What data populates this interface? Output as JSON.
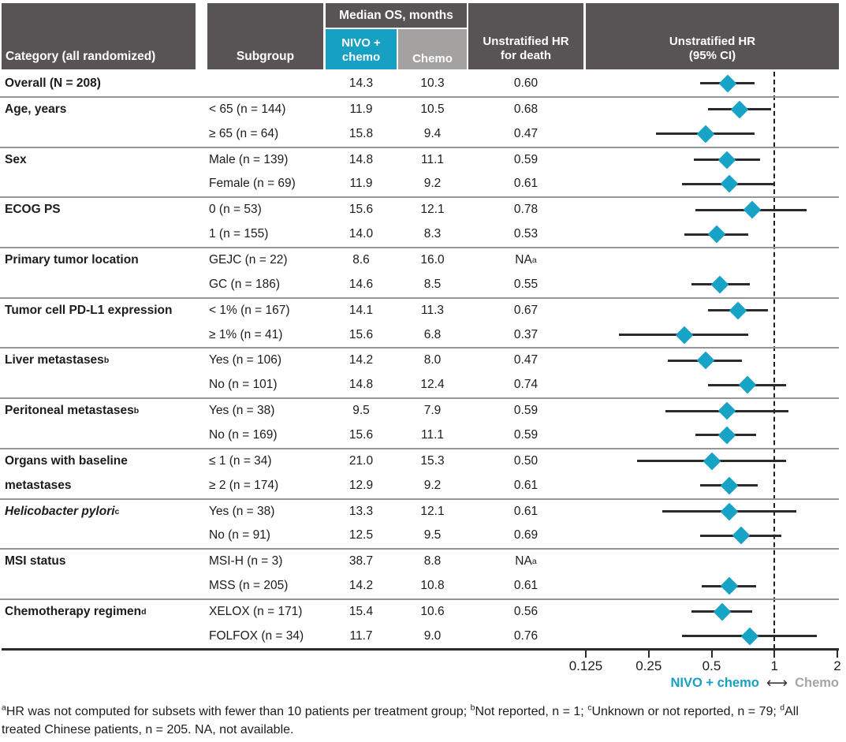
{
  "header": {
    "category": "Category (all randomized)",
    "subgroup": "Subgroup",
    "median_os": "Median OS, months",
    "arm1_line1": "NIVO +",
    "arm1_line2": "chemo",
    "arm2": "Chemo",
    "hr_col_line1": "Unstratified HR",
    "hr_col_line2": "for death",
    "plot_col_line1": "Unstratified HR",
    "plot_col_line2": "(95% CI)"
  },
  "colors": {
    "header_dark": "#585354",
    "teal_accent": "#16a0c3",
    "chemo_gray": "#a4a1a1",
    "ci_line": "#2b2b2b",
    "separator": "#969696"
  },
  "chart_data": {
    "type": "scatter",
    "title": "Unstratified HR (95% CI)",
    "x_scale": "log2",
    "x_range": [
      0.125,
      2
    ],
    "x_ticks": [
      0.125,
      0.25,
      0.5,
      1,
      2
    ],
    "x_tick_labels": [
      "0.125",
      "0.25",
      "0.5",
      "1",
      "2"
    ],
    "reference_line": 1,
    "legend": {
      "left_label": "NIVO + chemo",
      "arrow": "⟷",
      "right_label": "Chemo"
    },
    "rows": [
      {
        "category": "Overall (N = 208)",
        "subgroup": "",
        "nivo": "14.3",
        "chemo": "10.3",
        "hr": "0.60",
        "est": 0.6,
        "lo": 0.44,
        "hi": 0.8,
        "sep": false
      },
      {
        "category": "Age, years",
        "subgroup": "< 65 (n = 144)",
        "nivo": "11.9",
        "chemo": "10.5",
        "hr": "0.68",
        "est": 0.68,
        "lo": 0.48,
        "hi": 0.96,
        "sep": true
      },
      {
        "category": "",
        "subgroup": "≥ 65 (n = 64)",
        "nivo": "15.8",
        "chemo": "9.4",
        "hr": "0.47",
        "est": 0.47,
        "lo": 0.27,
        "hi": 0.8,
        "sep": false
      },
      {
        "category": "Sex",
        "subgroup": "Male (n = 139)",
        "nivo": "14.8",
        "chemo": "11.1",
        "hr": "0.59",
        "est": 0.59,
        "lo": 0.41,
        "hi": 0.85,
        "sep": true
      },
      {
        "category": "",
        "subgroup": "Female (n = 69)",
        "nivo": "11.9",
        "chemo": "9.2",
        "hr": "0.61",
        "est": 0.61,
        "lo": 0.36,
        "hi": 1.0,
        "sep": false
      },
      {
        "category": "ECOG PS",
        "subgroup": "0 (n = 53)",
        "nivo": "15.6",
        "chemo": "12.1",
        "hr": "0.78",
        "est": 0.78,
        "lo": 0.42,
        "hi": 1.43,
        "sep": true
      },
      {
        "category": "",
        "subgroup": "1 (n = 155)",
        "nivo": "14.0",
        "chemo": "8.3",
        "hr": "0.53",
        "est": 0.53,
        "lo": 0.37,
        "hi": 0.75,
        "sep": false
      },
      {
        "category": "Primary tumor location",
        "subgroup": "GEJC (n = 22)",
        "nivo": "8.6",
        "chemo": "16.0",
        "hr": "NA",
        "hr_sup": "a",
        "est": null,
        "sep": true
      },
      {
        "category": "",
        "subgroup": "GC (n = 186)",
        "nivo": "14.6",
        "chemo": "8.5",
        "hr": "0.55",
        "est": 0.55,
        "lo": 0.4,
        "hi": 0.76,
        "sep": false
      },
      {
        "category": "Tumor cell PD-L1 expression",
        "subgroup": "< 1% (n = 167)",
        "nivo": "14.1",
        "chemo": "11.3",
        "hr": "0.67",
        "est": 0.67,
        "lo": 0.48,
        "hi": 0.93,
        "sep": true
      },
      {
        "category": "",
        "subgroup": "≥ 1% (n = 41)",
        "nivo": "15.6",
        "chemo": "6.8",
        "hr": "0.37",
        "est": 0.37,
        "lo": 0.18,
        "hi": 0.75,
        "sep": false
      },
      {
        "category": "Liver metastases",
        "cat_sup": "b",
        "subgroup": "Yes (n = 106)",
        "nivo": "14.2",
        "chemo": "8.0",
        "hr": "0.47",
        "est": 0.47,
        "lo": 0.31,
        "hi": 0.7,
        "sep": true
      },
      {
        "category": "",
        "subgroup": "No (n = 101)",
        "nivo": "14.8",
        "chemo": "12.4",
        "hr": "0.74",
        "est": 0.74,
        "lo": 0.48,
        "hi": 1.14,
        "sep": false
      },
      {
        "category": "Peritoneal metastases",
        "cat_sup": "b",
        "subgroup": "Yes (n = 38)",
        "nivo": "9.5",
        "chemo": "7.9",
        "hr": "0.59",
        "est": 0.59,
        "lo": 0.3,
        "hi": 1.17,
        "sep": true
      },
      {
        "category": "",
        "subgroup": "No (n = 169)",
        "nivo": "15.6",
        "chemo": "11.1",
        "hr": "0.59",
        "est": 0.59,
        "lo": 0.42,
        "hi": 0.82,
        "sep": false
      },
      {
        "category": "Organs with baseline",
        "subgroup": "≤ 1 (n = 34)",
        "nivo": "21.0",
        "chemo": "15.3",
        "hr": "0.50",
        "est": 0.5,
        "lo": 0.22,
        "hi": 1.14,
        "sep": true
      },
      {
        "category": "metastases",
        "subgroup": "≥ 2 (n = 174)",
        "nivo": "12.9",
        "chemo": "9.2",
        "hr": "0.61",
        "est": 0.61,
        "lo": 0.44,
        "hi": 0.83,
        "sep": false
      },
      {
        "category": "Helicobacter pylori",
        "cat_sup": "c",
        "cat_italic": true,
        "subgroup": "Yes (n = 38)",
        "nivo": "13.3",
        "chemo": "12.1",
        "hr": "0.61",
        "est": 0.61,
        "lo": 0.29,
        "hi": 1.27,
        "sep": true
      },
      {
        "category": "",
        "subgroup": "No (n = 91)",
        "nivo": "12.5",
        "chemo": "9.5",
        "hr": "0.69",
        "est": 0.69,
        "lo": 0.44,
        "hi": 1.08,
        "sep": false
      },
      {
        "category": "MSI status",
        "subgroup": "MSI-H (n = 3)",
        "nivo": "38.7",
        "chemo": "8.8",
        "hr": "NA",
        "hr_sup": "a",
        "est": null,
        "sep": true
      },
      {
        "category": "",
        "subgroup": "MSS (n = 205)",
        "nivo": "14.2",
        "chemo": "10.8",
        "hr": "0.61",
        "est": 0.61,
        "lo": 0.45,
        "hi": 0.82,
        "sep": false
      },
      {
        "category": "Chemotherapy regimen",
        "cat_sup": "d",
        "subgroup": "XELOX (n = 171)",
        "nivo": "15.4",
        "chemo": "10.6",
        "hr": "0.56",
        "est": 0.56,
        "lo": 0.4,
        "hi": 0.78,
        "sep": true
      },
      {
        "category": "",
        "subgroup": "FOLFOX (n = 34)",
        "nivo": "11.7",
        "chemo": "9.0",
        "hr": "0.76",
        "est": 0.76,
        "lo": 0.36,
        "hi": 1.59,
        "sep": false
      }
    ]
  },
  "footnote": {
    "segments": [
      {
        "sup": "a",
        "text": "HR was not computed for subsets with fewer than 10 patients per treatment group; "
      },
      {
        "sup": "b",
        "text": "Not reported, n = 1; "
      },
      {
        "sup": "c",
        "text": "Unknown or not reported, n = 79; "
      },
      {
        "sup": "d",
        "text": "All treated Chinese patients, n = 205. NA, not available."
      }
    ]
  }
}
